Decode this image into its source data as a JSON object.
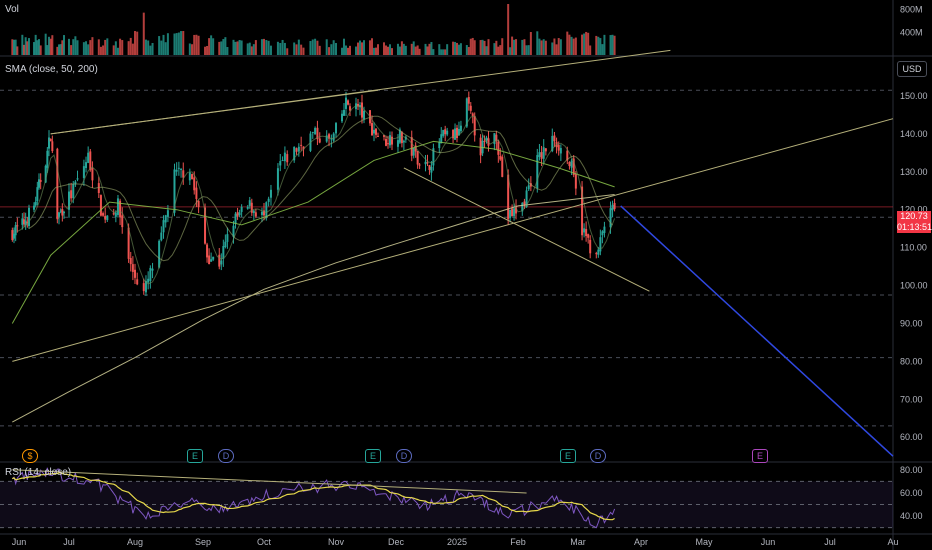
{
  "colors": {
    "up": "#26a69a",
    "down": "#ef5350",
    "sma50": "#8bc34a",
    "sma200": "#d4d09a",
    "trend": "#b5b07a",
    "projection": "#2f48e0",
    "rsi": "#7e57c2",
    "rsi_ma": "#e6d84b",
    "price_tag": "#f23645"
  },
  "labels": {
    "volume_title": "Vol",
    "sma_title": "SMA (close, 50, 200)",
    "rsi_title": "RSI (14, close)",
    "currency": "USD",
    "price_value": "120.73",
    "countdown": "01:13:51"
  },
  "event_badges": [
    {
      "kind": "dividend",
      "text": "$"
    },
    {
      "kind": "earnings",
      "text": "E"
    },
    {
      "kind": "dividend",
      "text": "D"
    },
    {
      "kind": "earnings",
      "text": "E"
    },
    {
      "kind": "dividend",
      "text": "D"
    },
    {
      "kind": "earnings",
      "text": "E"
    },
    {
      "kind": "dividend",
      "text": "D"
    },
    {
      "kind": "earnings",
      "text": "E"
    }
  ],
  "chart_data": {
    "type": "candlestick",
    "x_axis_labels": [
      "Jun",
      "Jul",
      "Aug",
      "Sep",
      "Oct",
      "Nov",
      "Dec",
      "2025",
      "Feb",
      "Mar",
      "Apr",
      "May",
      "Jun",
      "Jul",
      "Au"
    ],
    "price_ticks": [
      "150.00",
      "140.00",
      "130.00",
      "120.00",
      "110.00",
      "100.00",
      "90.00",
      "80.00",
      "70.00",
      "60.00"
    ],
    "price_range": [
      54,
      160
    ],
    "volume_ticks": [
      "800M",
      "400M"
    ],
    "volume_range": [
      0,
      900
    ],
    "rsi_ticks": [
      "80.00",
      "60.00",
      "40.00"
    ],
    "rsi_range": [
      28,
      85
    ],
    "dashed_levels": [
      151.5,
      118.0,
      97.5,
      81.0,
      63.0
    ],
    "last_price": 120.73,
    "volume_profile": {
      "segments": [
        {
          "from": "2024-06-01",
          "to": "2024-07-01",
          "avg_m": 260
        },
        {
          "from": "2024-07-01",
          "to": "2024-08-01",
          "avg_m": 230
        },
        {
          "from": "2024-08-01",
          "to": "2024-09-01",
          "avg_m": 300
        },
        {
          "from": "2024-09-01",
          "to": "2024-10-01",
          "avg_m": 240
        },
        {
          "from": "2024-10-01",
          "to": "2024-11-01",
          "avg_m": 200
        },
        {
          "from": "2024-11-01",
          "to": "2024-12-01",
          "avg_m": 210
        },
        {
          "from": "2024-12-01",
          "to": "2025-01-01",
          "avg_m": 170
        },
        {
          "from": "2025-01-01",
          "to": "2025-02-01",
          "avg_m": 230
        },
        {
          "from": "2025-02-01",
          "to": "2025-03-01",
          "avg_m": 290
        },
        {
          "from": "2025-03-01",
          "to": "2025-03-20",
          "avg_m": 300
        }
      ],
      "spikes": [
        {
          "date": "2024-08-05",
          "value_m": 560
        },
        {
          "date": "2025-01-27",
          "value_m": 840
        },
        {
          "date": "2025-03-03",
          "value_m": 430
        }
      ]
    },
    "price_path": [
      {
        "date": "2024-05-28",
        "close": 114
      },
      {
        "date": "2024-06-03",
        "close": 116
      },
      {
        "date": "2024-06-10",
        "close": 121
      },
      {
        "date": "2024-06-18",
        "close": 135
      },
      {
        "date": "2024-06-20",
        "close": 140
      },
      {
        "date": "2024-06-24",
        "close": 118
      },
      {
        "date": "2024-07-02",
        "close": 124
      },
      {
        "date": "2024-07-10",
        "close": 134
      },
      {
        "date": "2024-07-17",
        "close": 118
      },
      {
        "date": "2024-07-24",
        "close": 121
      },
      {
        "date": "2024-07-30",
        "close": 105
      },
      {
        "date": "2024-08-05",
        "close": 98
      },
      {
        "date": "2024-08-12",
        "close": 110
      },
      {
        "date": "2024-08-19",
        "close": 129
      },
      {
        "date": "2024-08-26",
        "close": 131
      },
      {
        "date": "2024-09-03",
        "close": 108
      },
      {
        "date": "2024-09-09",
        "close": 106
      },
      {
        "date": "2024-09-16",
        "close": 117
      },
      {
        "date": "2024-09-24",
        "close": 121
      },
      {
        "date": "2024-10-01",
        "close": 118
      },
      {
        "date": "2024-10-08",
        "close": 132
      },
      {
        "date": "2024-10-15",
        "close": 136
      },
      {
        "date": "2024-10-22",
        "close": 140
      },
      {
        "date": "2024-10-30",
        "close": 138
      },
      {
        "date": "2024-11-06",
        "close": 148
      },
      {
        "date": "2024-11-12",
        "close": 147
      },
      {
        "date": "2024-11-18",
        "close": 142
      },
      {
        "date": "2024-11-25",
        "close": 138
      },
      {
        "date": "2024-12-02",
        "close": 140
      },
      {
        "date": "2024-12-10",
        "close": 135
      },
      {
        "date": "2024-12-17",
        "close": 131
      },
      {
        "date": "2024-12-24",
        "close": 139
      },
      {
        "date": "2025-01-02",
        "close": 140
      },
      {
        "date": "2025-01-06",
        "close": 148
      },
      {
        "date": "2025-01-13",
        "close": 136
      },
      {
        "date": "2025-01-21",
        "close": 140
      },
      {
        "date": "2025-01-27",
        "close": 118
      },
      {
        "date": "2025-02-03",
        "close": 121
      },
      {
        "date": "2025-02-10",
        "close": 133
      },
      {
        "date": "2025-02-18",
        "close": 139
      },
      {
        "date": "2025-02-26",
        "close": 131
      },
      {
        "date": "2025-03-03",
        "close": 115
      },
      {
        "date": "2025-03-10",
        "close": 107
      },
      {
        "date": "2025-03-14",
        "close": 116
      },
      {
        "date": "2025-03-19",
        "close": 120.73
      }
    ],
    "sma": [
      {
        "name": "SMA 50",
        "color": "#8bc34a",
        "points": [
          {
            "date": "2024-05-28",
            "value": 90
          },
          {
            "date": "2024-06-20",
            "value": 108
          },
          {
            "date": "2024-07-20",
            "value": 122
          },
          {
            "date": "2024-08-20",
            "value": 120
          },
          {
            "date": "2024-09-20",
            "value": 116
          },
          {
            "date": "2024-10-20",
            "value": 122
          },
          {
            "date": "2024-11-20",
            "value": 133
          },
          {
            "date": "2024-12-20",
            "value": 138
          },
          {
            "date": "2025-01-20",
            "value": 136
          },
          {
            "date": "2025-02-20",
            "value": 131
          },
          {
            "date": "2025-03-19",
            "value": 126
          }
        ]
      },
      {
        "name": "SMA 200",
        "color": "#d4d09a",
        "points": [
          {
            "date": "2024-05-28",
            "value": 64
          },
          {
            "date": "2024-07-01",
            "value": 72
          },
          {
            "date": "2024-08-01",
            "value": 81
          },
          {
            "date": "2024-09-01",
            "value": 91
          },
          {
            "date": "2024-10-01",
            "value": 99
          },
          {
            "date": "2024-11-01",
            "value": 106
          },
          {
            "date": "2024-12-01",
            "value": 111
          },
          {
            "date": "2025-01-01",
            "value": 116
          },
          {
            "date": "2025-02-01",
            "value": 121
          },
          {
            "date": "2025-03-19",
            "value": 124
          }
        ]
      }
    ],
    "rsi_path": [
      {
        "date": "2024-05-28",
        "value": 72
      },
      {
        "date": "2024-06-20",
        "value": 78
      },
      {
        "date": "2024-07-15",
        "value": 68
      },
      {
        "date": "2024-08-05",
        "value": 40
      },
      {
        "date": "2024-08-26",
        "value": 55
      },
      {
        "date": "2024-09-09",
        "value": 45
      },
      {
        "date": "2024-10-08",
        "value": 62
      },
      {
        "date": "2024-11-06",
        "value": 68
      },
      {
        "date": "2024-11-25",
        "value": 58
      },
      {
        "date": "2024-12-17",
        "value": 50
      },
      {
        "date": "2025-01-06",
        "value": 60
      },
      {
        "date": "2025-01-27",
        "value": 40
      },
      {
        "date": "2025-02-18",
        "value": 55
      },
      {
        "date": "2025-03-10",
        "value": 33
      },
      {
        "date": "2025-03-19",
        "value": 45
      }
    ],
    "trendlines": [
      {
        "name": "upper channel",
        "from": {
          "date": "2024-06-20",
          "value": 140
        },
        "to": {
          "date": "2024-11-22",
          "value": 151.5
        }
      },
      {
        "name": "rising channel top",
        "from": {
          "date": "2024-06-20",
          "value": 140
        },
        "to": {
          "date": "2025-04-15",
          "value": 162
        }
      },
      {
        "name": "rising support",
        "from": {
          "date": "2024-05-28",
          "value": 80
        },
        "to": {
          "date": "2025-08-20",
          "value": 144
        }
      },
      {
        "name": "falling wedge",
        "from": {
          "date": "2024-12-05",
          "value": 131
        },
        "to": {
          "date": "2025-04-05",
          "value": 98.5
        }
      }
    ],
    "projection": {
      "from": {
        "date": "2025-03-22",
        "value": 121
      },
      "to": {
        "date": "2025-08-20",
        "value": 55
      }
    }
  }
}
